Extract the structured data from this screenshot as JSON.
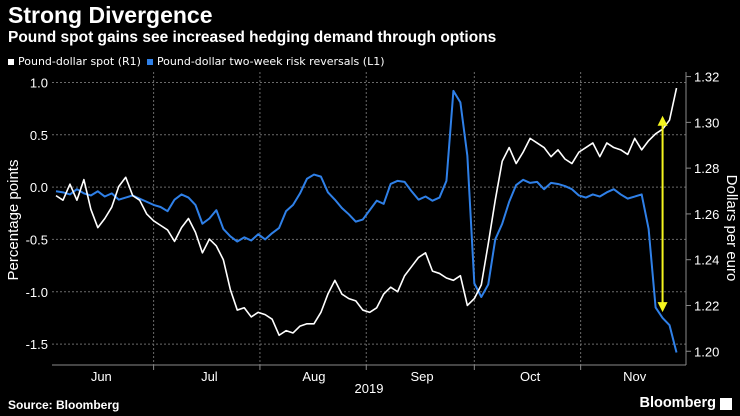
{
  "title": "Strong Divergence",
  "subtitle": "Pound spot gains see increased hedging demand through options",
  "source": "Source: Bloomberg",
  "brand": "Bloomberg",
  "colors": {
    "background": "#000000",
    "spot": "#ffffff",
    "risk": "#2f80e8",
    "annotation": "#f5f51e",
    "grid": "#6a6a6a"
  },
  "chart_data": {
    "type": "line",
    "legend": [
      "Pound-dollar spot (R1)",
      "Pound-dollar two-week risk reversals (L1)"
    ],
    "ylabel": "Percentage points",
    "y2label": "Dollars per euro",
    "ylim": [
      -1.7,
      1.1
    ],
    "yticks": [
      "1.0",
      "0.5",
      "0.0",
      "-0.5",
      "-1.0",
      "-1.5"
    ],
    "y2lim": [
      1.194,
      1.322
    ],
    "y2ticks": [
      "1.32",
      "1.30",
      "1.28",
      "1.26",
      "1.24",
      "1.22",
      "1.20"
    ],
    "x_range": [
      0,
      179
    ],
    "xtick_positions": [
      13,
      44,
      74,
      105,
      136,
      166
    ],
    "xticks": [
      "Jun",
      "Jul",
      "Aug",
      "Sep",
      "Oct",
      "Nov"
    ],
    "xlabel": "2019",
    "annotation": {
      "type": "double-arrow",
      "x": 174,
      "from": 1.302,
      "to": 1.218
    },
    "series": [
      {
        "name": "Pound-dollar spot (R1)",
        "axis": "right",
        "x": [
          0,
          2,
          4,
          6,
          8,
          10,
          12,
          14,
          16,
          18,
          20,
          22,
          24,
          26,
          28,
          30,
          32,
          34,
          36,
          38,
          40,
          42,
          44,
          46,
          48,
          50,
          52,
          54,
          56,
          58,
          60,
          62,
          64,
          66,
          68,
          70,
          72,
          74,
          76,
          78,
          80,
          82,
          84,
          86,
          88,
          90,
          92,
          94,
          96,
          98,
          100,
          102,
          104,
          106,
          108,
          110,
          112,
          114,
          116,
          118,
          120,
          122,
          124,
          126,
          128,
          130,
          132,
          134,
          136,
          138,
          140,
          142,
          144,
          146,
          148,
          150,
          152,
          154,
          156,
          158,
          160,
          162,
          164,
          166,
          168,
          170,
          172,
          174,
          176,
          178
        ],
        "values": [
          1.268,
          1.266,
          1.273,
          1.266,
          1.275,
          1.262,
          1.254,
          1.258,
          1.263,
          1.272,
          1.276,
          1.268,
          1.266,
          1.26,
          1.257,
          1.255,
          1.253,
          1.248,
          1.254,
          1.258,
          1.252,
          1.243,
          1.249,
          1.246,
          1.24,
          1.227,
          1.218,
          1.219,
          1.215,
          1.217,
          1.216,
          1.214,
          1.207,
          1.209,
          1.208,
          1.211,
          1.212,
          1.212,
          1.217,
          1.225,
          1.231,
          1.225,
          1.223,
          1.222,
          1.218,
          1.217,
          1.219,
          1.225,
          1.228,
          1.226,
          1.233,
          1.237,
          1.241,
          1.243,
          1.235,
          1.234,
          1.232,
          1.231,
          1.233,
          1.22,
          1.223,
          1.229,
          1.247,
          1.266,
          1.283,
          1.289,
          1.282,
          1.287,
          1.293,
          1.291,
          1.289,
          1.285,
          1.288,
          1.284,
          1.282,
          1.287,
          1.289,
          1.291,
          1.285,
          1.291,
          1.289,
          1.288,
          1.286,
          1.293,
          1.288,
          1.292,
          1.295,
          1.297,
          1.301,
          1.315
        ]
      },
      {
        "name": "Pound-dollar two-week risk reversals (L1)",
        "axis": "left",
        "x": [
          0,
          2,
          4,
          6,
          8,
          10,
          12,
          14,
          16,
          18,
          20,
          22,
          24,
          26,
          28,
          30,
          32,
          34,
          36,
          38,
          40,
          42,
          44,
          46,
          48,
          50,
          52,
          54,
          56,
          58,
          60,
          62,
          64,
          66,
          68,
          70,
          72,
          74,
          76,
          78,
          80,
          82,
          84,
          86,
          88,
          90,
          92,
          94,
          96,
          98,
          100,
          102,
          104,
          106,
          108,
          110,
          112,
          114,
          116,
          118,
          120,
          122,
          124,
          126,
          128,
          130,
          132,
          134,
          136,
          138,
          140,
          142,
          144,
          146,
          148,
          150,
          152,
          154,
          156,
          158,
          160,
          162,
          164,
          166,
          168,
          170,
          172,
          174,
          176,
          178
        ],
        "values": [
          -0.04,
          -0.05,
          -0.07,
          -0.02,
          -0.06,
          -0.08,
          -0.04,
          -0.09,
          -0.06,
          -0.12,
          -0.1,
          -0.08,
          -0.11,
          -0.14,
          -0.17,
          -0.19,
          -0.23,
          -0.12,
          -0.07,
          -0.1,
          -0.17,
          -0.35,
          -0.3,
          -0.22,
          -0.4,
          -0.47,
          -0.52,
          -0.48,
          -0.51,
          -0.45,
          -0.5,
          -0.44,
          -0.39,
          -0.23,
          -0.17,
          -0.06,
          0.08,
          0.12,
          0.1,
          -0.05,
          -0.12,
          -0.2,
          -0.26,
          -0.33,
          -0.31,
          -0.22,
          -0.13,
          -0.16,
          0.03,
          0.06,
          0.05,
          -0.04,
          -0.12,
          -0.09,
          -0.13,
          -0.1,
          0.06,
          0.92,
          0.81,
          0.3,
          -0.92,
          -1.05,
          -0.93,
          -0.5,
          -0.35,
          -0.14,
          0.02,
          0.07,
          0.04,
          0.05,
          -0.02,
          0.04,
          0.03,
          0.01,
          -0.02,
          -0.08,
          -0.1,
          -0.07,
          -0.09,
          -0.05,
          -0.02,
          -0.07,
          -0.11,
          -0.09,
          -0.07,
          -0.4,
          -1.15,
          -1.25,
          -1.32,
          -1.58
        ]
      }
    ]
  }
}
